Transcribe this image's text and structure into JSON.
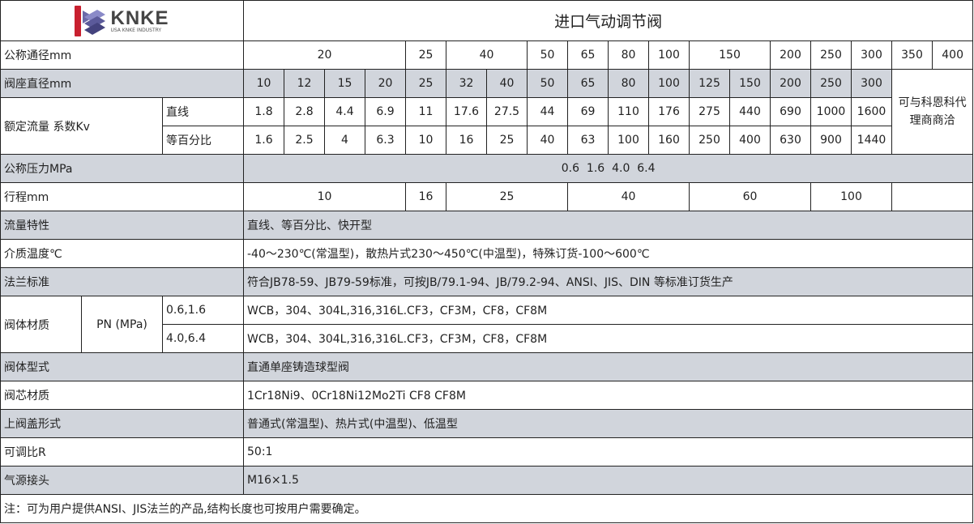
{
  "logo": {
    "brand": "KNKE",
    "tagline": "USA KNKE INDUSTRY",
    "colors": {
      "red": "#c8202f",
      "purple": "#5b5a9a"
    }
  },
  "title": "进口气动调节阀",
  "nominal_diameter": {
    "label": "公称通径mm",
    "values": [
      "20",
      "25",
      "40",
      "50",
      "65",
      "80",
      "100",
      "150",
      "200",
      "250",
      "300",
      "350",
      "400"
    ]
  },
  "seat_diameter": {
    "label": "阀座直径mm",
    "values": [
      "10",
      "12",
      "15",
      "20",
      "25",
      "32",
      "40",
      "50",
      "65",
      "80",
      "100",
      "125",
      "150",
      "200",
      "250",
      "300"
    ]
  },
  "kv": {
    "label": "额定流量 系数Kv",
    "linear": {
      "label": "直线",
      "values": [
        "1.8",
        "2.8",
        "4.4",
        "6.9",
        "11",
        "17.6",
        "27.5",
        "44",
        "69",
        "110",
        "176",
        "275",
        "440",
        "690",
        "1000",
        "1600"
      ]
    },
    "equal": {
      "label": "等百分比",
      "values": [
        "1.6",
        "2.5",
        "4",
        "6.3",
        "10",
        "16",
        "25",
        "40",
        "63",
        "100",
        "160",
        "250",
        "400",
        "630",
        "900",
        "1440"
      ]
    },
    "consult": "可与科恩科代理商商洽"
  },
  "pressure": {
    "label": "公称压力MPa",
    "value": "0.6  1.6  4.0  6.4"
  },
  "stroke": {
    "label": "行程mm",
    "values": [
      "10",
      "16",
      "25",
      "40",
      "60",
      "100"
    ]
  },
  "flow_char": {
    "label": "流量特性",
    "value": "直线、等百分比、快开型"
  },
  "temp": {
    "label": "介质温度℃",
    "value": "-40～230℃(常温型)，散热片式230～450℃(中温型)，特殊订货-100～600℃"
  },
  "flange": {
    "label": "法兰标准",
    "value": "符合JB78-59、JB79-59标准，可按JB/79.1-94、JB/79.2-94、ANSI、JIS、DIN 等标准订货生产"
  },
  "body_material": {
    "label": "阀体材质",
    "pn": "PN (MPa)",
    "rows": [
      {
        "pn": "0.6,1.6",
        "value": "WCB，304、304L,316,316L.CF3，CF3M，CF8，CF8M"
      },
      {
        "pn": "4.0,6.4",
        "value": "WCB，304、304L,316,316L.CF3，CF3M，CF8，CF8M"
      }
    ]
  },
  "body_type": {
    "label": "阀体型式",
    "value": "直通单座铸造球型阀"
  },
  "core_material": {
    "label": "阀芯材质",
    "value": "1Cr18Ni9、0Cr18Ni12Mo2Ti CF8 CF8M"
  },
  "bonnet": {
    "label": "上阀盖形式",
    "value": "普通式(常温型)、热片式(中温型)、低温型"
  },
  "rangeability": {
    "label": "可调比R",
    "value": "50:1"
  },
  "air_conn": {
    "label": "气源接头",
    "value": "M16×1.5"
  },
  "note": "注：可为用户提供ANSI、JIS法兰的产品,结构长度也可按用户需要确定。"
}
